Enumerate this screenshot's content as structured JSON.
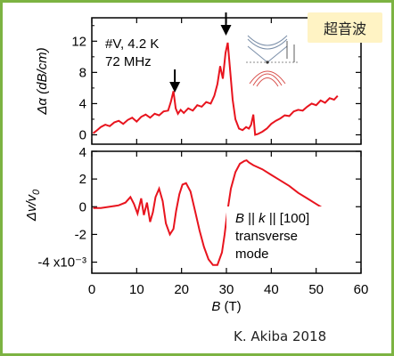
{
  "badge_label": "超音波",
  "credit": "K. Akiba 2018",
  "inset_icon": "band-structure-inset",
  "chart_data": [
    {
      "panel": "top",
      "type": "line",
      "color": "#e8141e",
      "ylabel": "Δα (dB/cm)",
      "ylim": [
        -1.2,
        15
      ],
      "yticks": [
        0,
        4,
        8,
        12
      ],
      "annotations": [
        "#V, 4.2 K",
        "72 MHz"
      ],
      "arrows_at_B": [
        18.5,
        29.9
      ],
      "series": [
        {
          "x": [
            0.3,
            1,
            2,
            3,
            4,
            5,
            6,
            7,
            8,
            9,
            10,
            11,
            12,
            13,
            14,
            15,
            16,
            17,
            17.6,
            18.2,
            18.7,
            19.2,
            19.8,
            20.5,
            21.5,
            22.5,
            23.5,
            24.5,
            25.5,
            26.5,
            27.3,
            28,
            28.6,
            29.2,
            29.8,
            30.3,
            30.8,
            31.4,
            32,
            32.8,
            33.6,
            34.4,
            35,
            35.5,
            36,
            36.4,
            37,
            38,
            39,
            40,
            41,
            42,
            43,
            44,
            45,
            46,
            47,
            48,
            49,
            50,
            51,
            52,
            53,
            54,
            54.8
          ],
          "y": [
            0.2,
            0.5,
            1.0,
            1.3,
            1.1,
            1.6,
            1.8,
            1.4,
            1.9,
            2.2,
            1.7,
            2.3,
            2.6,
            2.2,
            2.7,
            2.5,
            3.0,
            3.1,
            4.2,
            5.6,
            3.4,
            2.7,
            3.2,
            2.8,
            3.4,
            3.1,
            3.8,
            3.6,
            4.2,
            4.0,
            5.0,
            6.5,
            8.8,
            7.2,
            10.5,
            11.8,
            8.5,
            4.5,
            2.0,
            0.8,
            0.6,
            1.0,
            0.8,
            1.3,
            2.6,
            0.0,
            0.1,
            0.4,
            0.8,
            1.4,
            1.8,
            2.1,
            2.5,
            2.4,
            3.0,
            3.2,
            3.1,
            3.6,
            4.0,
            3.8,
            4.4,
            4.1,
            4.7,
            4.5,
            5.0
          ]
        }
      ]
    },
    {
      "panel": "bottom",
      "type": "line",
      "color": "#e8141e",
      "xlabel": "B (T)",
      "xlim": [
        0,
        60
      ],
      "xticks": [
        0,
        10,
        20,
        30,
        40,
        50,
        60
      ],
      "ylabel": "Δv/v0",
      "ylim": [
        -4.8,
        4
      ],
      "yticks": [
        -4,
        -2,
        0,
        2,
        4
      ],
      "ytick_labels": [
        "-4 x10⁻³",
        "-2",
        "0",
        "2",
        "4"
      ],
      "annotations": [
        "B || k || [100]",
        "transverse",
        "mode"
      ],
      "series": [
        {
          "x": [
            0.3,
            2,
            4,
            6,
            7.5,
            8.6,
            9.4,
            10.2,
            11,
            11.6,
            12.3,
            13,
            13.6,
            14.2,
            15,
            15.8,
            16.5,
            17.4,
            18.2,
            18.8,
            19.5,
            20.2,
            21,
            22,
            23,
            24,
            25,
            26,
            27,
            28,
            29,
            29.6,
            30.2,
            31,
            32,
            33,
            34,
            34.5,
            35,
            36,
            38,
            40,
            42,
            44,
            46,
            48,
            50,
            52,
            54,
            54.8
          ],
          "y": [
            -0.1,
            -0.1,
            0.0,
            0.1,
            0.3,
            0.7,
            0.2,
            -0.5,
            0.6,
            -0.6,
            0.3,
            -1.1,
            -0.4,
            0.7,
            1.3,
            0.4,
            -1.2,
            -2.0,
            -1.6,
            -0.3,
            0.9,
            1.6,
            1.7,
            1.1,
            -0.3,
            -1.7,
            -2.9,
            -3.8,
            -4.2,
            -4.2,
            -3.3,
            -2.0,
            -0.4,
            1.3,
            2.5,
            3.1,
            3.3,
            3.35,
            3.2,
            3.0,
            2.7,
            2.3,
            1.9,
            1.5,
            1.0,
            0.6,
            0.2,
            -0.2,
            -0.5,
            -0.6
          ]
        }
      ]
    }
  ]
}
